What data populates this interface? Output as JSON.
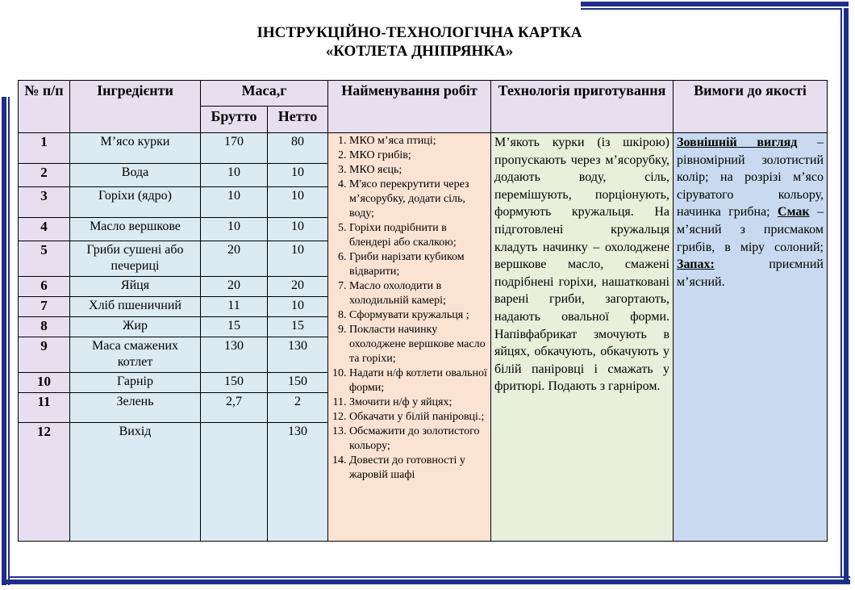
{
  "title": {
    "line1": "ІНСТРУКЦІЙНО-ТЕХНОЛОГІЧНА КАРТКА",
    "line2": "«КОТЛЕТА ДНІПРЯНКА»"
  },
  "headers": {
    "num": "№ п/п",
    "ingredients": "Інгредієнти",
    "mass": "Маса,г",
    "brutto": "Брутто",
    "netto": "Нетто",
    "works": "Найменування робіт",
    "technology": "Технологія приготування",
    "requirements": "Вимоги до якості"
  },
  "rows": [
    {
      "num": "1",
      "name": "М’ясо курки",
      "brutto": "170",
      "netto": "80"
    },
    {
      "num": "2",
      "name": "Вода",
      "brutto": "10",
      "netto": "10"
    },
    {
      "num": "3",
      "name": "Горіхи (ядро)",
      "brutto": "10",
      "netto": "10"
    },
    {
      "num": "4",
      "name": "Масло вершкове",
      "brutto": "10",
      "netto": "10"
    },
    {
      "num": "5",
      "name": "Гриби сушені або печериці",
      "brutto": "20",
      "netto": "10"
    },
    {
      "num": "6",
      "name": "Яйця",
      "brutto": "20",
      "netto": "20"
    },
    {
      "num": "7",
      "name": "Хліб пшеничний",
      "brutto": "11",
      "netto": "10"
    },
    {
      "num": "8",
      "name": "Жир",
      "brutto": "15",
      "netto": "15"
    },
    {
      "num": "9",
      "name": "Маса смажених котлет",
      "brutto": "130",
      "netto": "130"
    },
    {
      "num": "10",
      "name": "Гарнір",
      "brutto": "150",
      "netto": "150"
    },
    {
      "num": "11",
      "name": "Зелень",
      "brutto": "2,7",
      "netto": "2"
    },
    {
      "num": "12",
      "name": "Вихід",
      "brutto": "",
      "netto": "130"
    }
  ],
  "works": [
    "МКО м’яса птиці;",
    "МКО грибів;",
    "МКО яєць;",
    "М'ясо перекрутити через м’ясорубку, додати сіль, воду;",
    "Горіхи подрібнити в блендері або скалкою;",
    "Гриби нарізати кубиком відварити;",
    "Масло охолодити в холодильній камері;",
    "Сформувати кружальця ;",
    "Покласти начинку охолоджене вершкове масло та горіхи;",
    "Надати н/ф котлети овальної форми;",
    "Змочити н/ф у яйцях;",
    "Обкачати у білій паніровці.;",
    "Обсмажити до золотистого кольору;",
    "Довести до готовності у жаровій шафі"
  ],
  "technology": "М’якоть курки (із шкірою) пропускають через м’ясорубку, додають воду, сіль, перемішують, порціонують, формують кружальця. На підготовлені кружальця кладуть начинку – охолоджене вершкове масло, смажені подрібнені горіхи, нашатковані варені гриби, загортають, надають овальної форми. Напівфабрикат змочують в яйцях, обкачують, обкачують у білій паніровці і смажать у фритюрі. Подають з гарніром.",
  "requirements": {
    "appearance_label": "Зовнішній вигляд",
    "appearance_text": " – рівномірний золотистий колір; на розрізі м’ясо сіруватого кольору, начинка грибна;",
    "taste_label": "Смак",
    "taste_text": " – м’ясний з присмаком грибів, в міру солоний;",
    "smell_label": "Запах:",
    "smell_text": " приємний м’ясний."
  },
  "colors": {
    "frame": "#1f2d8a",
    "header_bg": "#e7def0",
    "ingredients_bg": "#dbeaf3",
    "works_bg": "#fbe3d3",
    "technology_bg": "#e8f0dc",
    "requirements_bg": "#c9daf0"
  }
}
